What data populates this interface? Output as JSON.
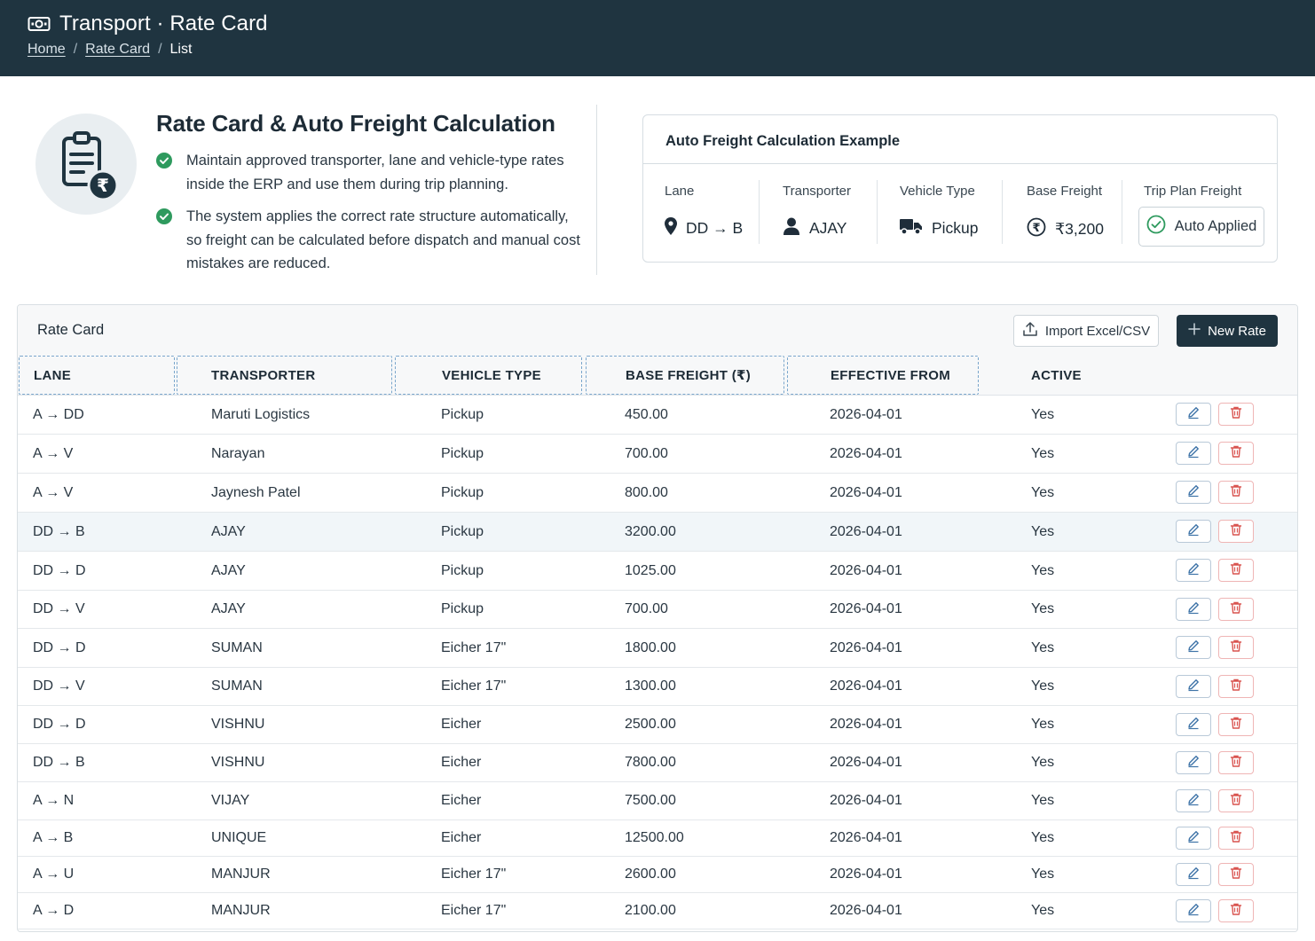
{
  "header": {
    "title": "Transport · Rate Card",
    "breadcrumbs": [
      "Home",
      "Rate Card",
      "List"
    ],
    "separator": "/"
  },
  "intro": {
    "title": "Rate Card & Auto Freight Calculation",
    "bullets": [
      "Maintain approved transporter, lane and vehicle-type rates inside the ERP and use them during trip planning.",
      "The system applies the correct rate structure automatically, so freight can be calculated before dispatch and manual cost mistakes are reduced."
    ]
  },
  "example": {
    "title": "Auto Freight Calculation Example",
    "lane_label": "Lane",
    "lane_value": "DD → B",
    "transporter_label": "Transporter",
    "transporter_value": "AJAY",
    "vehicle_label": "Vehicle Type",
    "vehicle_value": "Pickup",
    "freight_label": "Base Freight",
    "freight_value": "₹3,200",
    "trip_label": "Trip Plan Freight",
    "trip_value": "Auto Applied"
  },
  "table": {
    "title": "Rate Card",
    "import_label": "Import Excel/CSV",
    "new_label": "New Rate",
    "columns": [
      "LANE",
      "TRANSPORTER",
      "VEHICLE TYPE",
      "BASE FREIGHT (₹)",
      "EFFECTIVE FROM",
      "ACTIVE"
    ],
    "rows": [
      [
        "A → DD",
        "Maruti Logistics",
        "Pickup",
        "450.00",
        "2026-04-01",
        "Yes"
      ],
      [
        "A → V",
        "Narayan",
        "Pickup",
        "700.00",
        "2026-04-01",
        "Yes"
      ],
      [
        "A → V",
        "Jaynesh Patel",
        "Pickup",
        "800.00",
        "2026-04-01",
        "Yes"
      ],
      [
        "DD → B",
        "AJAY",
        "Pickup",
        "3200.00",
        "2026-04-01",
        "Yes"
      ],
      [
        "DD → D",
        "AJAY",
        "Pickup",
        "1025.00",
        "2026-04-01",
        "Yes"
      ],
      [
        "DD → V",
        "AJAY",
        "Pickup",
        "700.00",
        "2026-04-01",
        "Yes"
      ],
      [
        "DD → D",
        "SUMAN",
        "Eicher 17\"",
        "1800.00",
        "2026-04-01",
        "Yes"
      ],
      [
        "DD → V",
        "SUMAN",
        "Eicher 17\"",
        "1300.00",
        "2026-04-01",
        "Yes"
      ],
      [
        "DD → D",
        "VISHNU",
        "Eicher",
        "2500.00",
        "2026-04-01",
        "Yes"
      ],
      [
        "DD → B",
        "VISHNU",
        "Eicher",
        "7800.00",
        "2026-04-01",
        "Yes"
      ],
      [
        "A → N",
        "VIJAY",
        "Eicher",
        "7500.00",
        "2026-04-01",
        "Yes"
      ],
      [
        "A → B",
        "UNIQUE",
        "Eicher",
        "12500.00",
        "2026-04-01",
        "Yes"
      ],
      [
        "A → U",
        "MANJUR",
        "Eicher 17\"",
        "2600.00",
        "2026-04-01",
        "Yes"
      ],
      [
        "A → D",
        "MANJUR",
        "Eicher 17\"",
        "2100.00",
        "2026-04-01",
        "Yes"
      ]
    ],
    "selected_row": 3
  },
  "colors": {
    "header_bg": "#1f3440",
    "success": "#2e9a5e",
    "edit_icon": "#3f74a8",
    "delete_icon": "#d9534f"
  }
}
